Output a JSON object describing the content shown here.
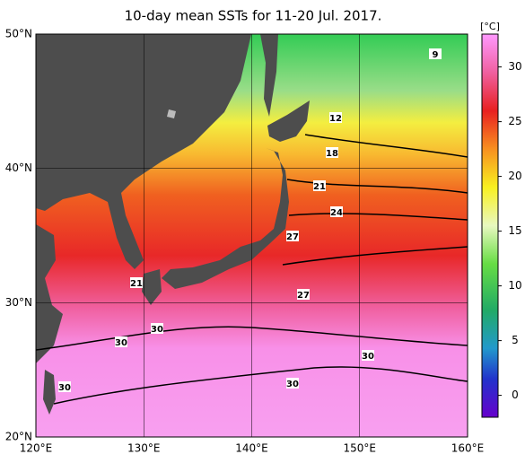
{
  "title": "10-day mean SSTs for 11-20 Jul. 2017.",
  "map": {
    "lon_range": [
      120,
      160
    ],
    "lat_range": [
      20,
      50
    ],
    "lon_ticks": [
      {
        "value": 120,
        "label": "120°E"
      },
      {
        "value": 130,
        "label": "130°E"
      },
      {
        "value": 140,
        "label": "140°E"
      },
      {
        "value": 150,
        "label": "150°E"
      },
      {
        "value": 160,
        "label": "160°E"
      }
    ],
    "lat_ticks": [
      {
        "value": 20,
        "label": "20°N"
      },
      {
        "value": 30,
        "label": "30°N"
      },
      {
        "value": 40,
        "label": "40°N"
      },
      {
        "value": 50,
        "label": "50°N"
      }
    ],
    "contour_labels": [
      9,
      12,
      18,
      21,
      24,
      27,
      21,
      27,
      30,
      30,
      30,
      30,
      30
    ]
  },
  "colorbar": {
    "unit": "[°C]",
    "lim": [
      -2,
      33
    ],
    "ticks": [
      30,
      25,
      20,
      15,
      10,
      5,
      0
    ]
  }
}
